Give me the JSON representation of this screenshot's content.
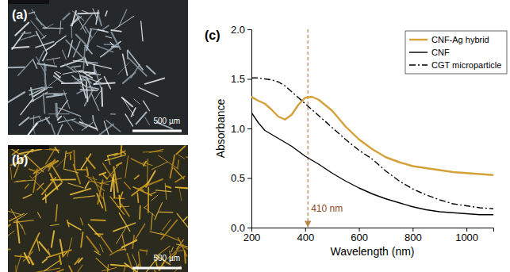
{
  "images": [
    {
      "label": "(a)",
      "scale_bar": "500 µm"
    },
    {
      "label": "(b)",
      "scale_bar": "500 µm"
    }
  ],
  "chart_data": {
    "type": "line",
    "title": "(c)",
    "x_label": "Wavelength (nm)",
    "y_label": "Absorbance",
    "x": [
      200,
      225,
      250,
      275,
      300,
      325,
      350,
      375,
      400,
      425,
      450,
      500,
      550,
      600,
      650,
      700,
      750,
      800,
      850,
      900,
      950,
      1000,
      1050,
      1100
    ],
    "series": [
      {
        "name": "CNF-Ag hybrid",
        "color": "#d4a038",
        "line_style": "solid",
        "values": [
          1.32,
          1.28,
          1.25,
          1.19,
          1.12,
          1.09,
          1.14,
          1.24,
          1.31,
          1.32,
          1.29,
          1.18,
          1.02,
          0.89,
          0.79,
          0.71,
          0.66,
          0.62,
          0.6,
          0.58,
          0.56,
          0.55,
          0.54,
          0.53
        ]
      },
      {
        "name": "CNF",
        "color": "#000000",
        "line_style": "solid",
        "values": [
          1.16,
          1.06,
          0.98,
          0.94,
          0.9,
          0.86,
          0.82,
          0.77,
          0.72,
          0.68,
          0.64,
          0.55,
          0.47,
          0.4,
          0.34,
          0.29,
          0.25,
          0.21,
          0.18,
          0.16,
          0.15,
          0.14,
          0.13,
          0.13
        ]
      },
      {
        "name": "CGT microparticle",
        "color": "#000000",
        "line_style": "dashdot",
        "values": [
          1.51,
          1.51,
          1.5,
          1.49,
          1.47,
          1.43,
          1.37,
          1.31,
          1.25,
          1.19,
          1.13,
          1.01,
          0.89,
          0.78,
          0.69,
          0.57,
          0.47,
          0.39,
          0.33,
          0.28,
          0.24,
          0.22,
          0.2,
          0.19
        ]
      }
    ],
    "xlim": [
      200,
      1100
    ],
    "xticks": [
      200,
      400,
      600,
      800,
      1000
    ],
    "ylim": [
      0,
      2
    ],
    "yticks": [
      {
        "value": 0,
        "label": "0.0"
      },
      {
        "value": 0.5,
        "label": "0.5"
      },
      {
        "value": 1,
        "label": "1.0"
      },
      {
        "value": 1.5,
        "label": "1.5"
      },
      {
        "value": 2,
        "label": "2.0"
      }
    ],
    "legend": "upper right",
    "annotations": [
      {
        "text": "410 nm",
        "x": 410
      }
    ]
  }
}
